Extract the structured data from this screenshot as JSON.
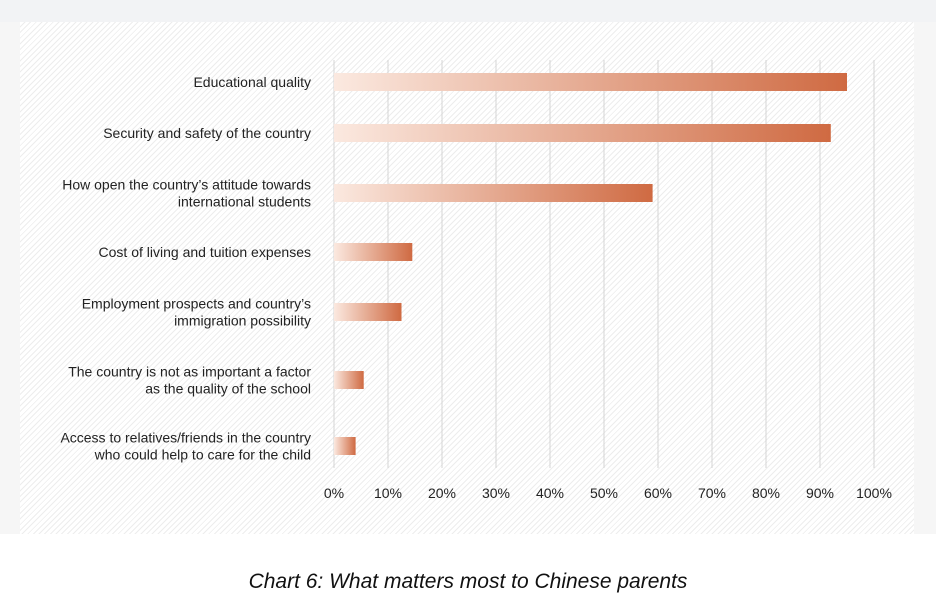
{
  "caption": "Chart 6: What matters most to Chinese parents",
  "chart_data": {
    "type": "bar",
    "orientation": "horizontal",
    "categories": [
      [
        "Educational quality"
      ],
      [
        "Security and safety of the country"
      ],
      [
        "How open the country’s attitude towards",
        "international students"
      ],
      [
        "Cost of living and tuition expenses"
      ],
      [
        "Employment prospects and country’s",
        "immigration possibility"
      ],
      [
        "The country is not as important a factor",
        "as the quality of the school"
      ],
      [
        "Access to relatives/friends in the country",
        "who could help to care for the child"
      ]
    ],
    "values": [
      95,
      92,
      59,
      14.5,
      12.5,
      5.5,
      4
    ],
    "xlim": [
      0,
      100
    ],
    "ticks": [
      "0%",
      "10%",
      "20%",
      "30%",
      "40%",
      "50%",
      "60%",
      "70%",
      "80%",
      "90%",
      "100%"
    ],
    "grid": true,
    "colors": {
      "bar_start": "#fbe9e0",
      "bar_end": "#cf6a42",
      "grid": "#d4d4d4",
      "text": "#222222"
    }
  }
}
